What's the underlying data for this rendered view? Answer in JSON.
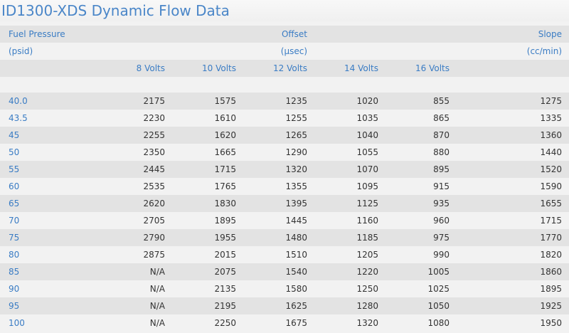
{
  "title": "ID1300-XDS Dynamic Flow Data",
  "header": {
    "fuel_pressure": "Fuel Pressure",
    "psid": "(psid)",
    "offset": "Offset",
    "usec": "(µsec)",
    "slope": "Slope",
    "ccmin": "(cc/min)",
    "volts": [
      "8 Volts",
      "10 Volts",
      "12 Volts",
      "14 Volts",
      "16 Volts"
    ]
  },
  "rows": [
    [
      "40.0",
      "2175",
      "1575",
      "1235",
      "1020",
      "855",
      "1275"
    ],
    [
      "43.5",
      "2230",
      "1610",
      "1255",
      "1035",
      "865",
      "1335"
    ],
    [
      "45",
      "2255",
      "1620",
      "1265",
      "1040",
      "870",
      "1360"
    ],
    [
      "50",
      "2350",
      "1665",
      "1290",
      "1055",
      "880",
      "1440"
    ],
    [
      "55",
      "2445",
      "1715",
      "1320",
      "1070",
      "895",
      "1520"
    ],
    [
      "60",
      "2535",
      "1765",
      "1355",
      "1095",
      "915",
      "1590"
    ],
    [
      "65",
      "2620",
      "1830",
      "1395",
      "1125",
      "935",
      "1655"
    ],
    [
      "70",
      "2705",
      "1895",
      "1445",
      "1160",
      "960",
      "1715"
    ],
    [
      "75",
      "2790",
      "1955",
      "1480",
      "1185",
      "975",
      "1770"
    ],
    [
      "80",
      "2875",
      "2015",
      "1510",
      "1205",
      "990",
      "1820"
    ],
    [
      "85",
      "N/A",
      "2075",
      "1540",
      "1220",
      "1005",
      "1860"
    ],
    [
      "90",
      "N/A",
      "2135",
      "1580",
      "1250",
      "1025",
      "1895"
    ],
    [
      "95",
      "N/A",
      "2195",
      "1625",
      "1280",
      "1050",
      "1925"
    ],
    [
      "100",
      "N/A",
      "2250",
      "1675",
      "1320",
      "1080",
      "1950"
    ]
  ]
}
